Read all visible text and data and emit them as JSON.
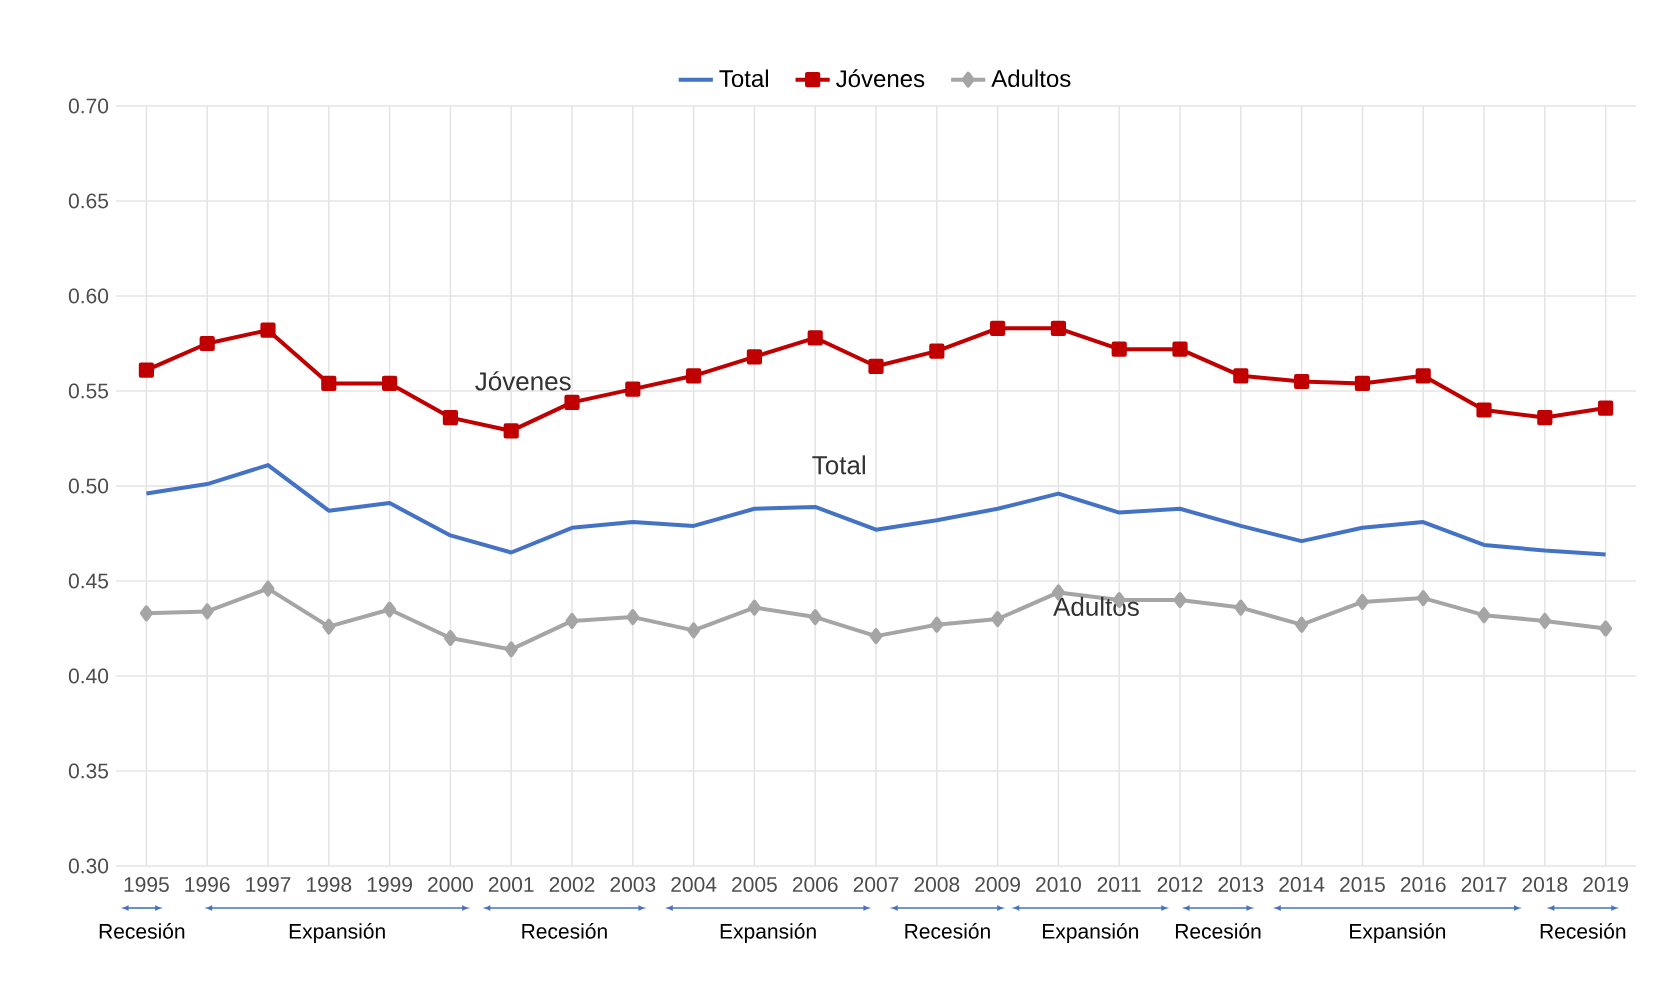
{
  "chart_data": {
    "type": "line",
    "x": [
      1995,
      1996,
      1997,
      1998,
      1999,
      2000,
      2001,
      2002,
      2003,
      2004,
      2005,
      2006,
      2007,
      2008,
      2009,
      2010,
      2011,
      2012,
      2013,
      2014,
      2015,
      2016,
      2017,
      2018,
      2019
    ],
    "series": [
      {
        "name": "Total",
        "color": "#4472c4",
        "marker": "none",
        "values": [
          0.496,
          0.501,
          0.511,
          0.487,
          0.491,
          0.474,
          0.465,
          0.478,
          0.481,
          0.479,
          0.488,
          0.489,
          0.477,
          0.482,
          0.488,
          0.496,
          0.486,
          0.488,
          0.479,
          0.471,
          0.478,
          0.481,
          0.469,
          0.466,
          0.464
        ]
      },
      {
        "name": "Jóvenes",
        "color": "#c00000",
        "marker": "square",
        "values": [
          0.561,
          0.575,
          0.582,
          0.554,
          0.554,
          0.536,
          0.529,
          0.544,
          0.551,
          0.558,
          0.568,
          0.578,
          0.563,
          0.571,
          0.583,
          0.583,
          0.572,
          0.572,
          0.558,
          0.555,
          0.554,
          0.558,
          0.54,
          0.536,
          0.541
        ]
      },
      {
        "name": "Adultos",
        "color": "#a5a5a5",
        "marker": "diamond",
        "values": [
          0.433,
          0.434,
          0.446,
          0.426,
          0.435,
          0.42,
          0.414,
          0.429,
          0.431,
          0.424,
          0.436,
          0.431,
          0.421,
          0.427,
          0.43,
          0.444,
          0.44,
          0.44,
          0.436,
          0.427,
          0.439,
          0.441,
          0.432,
          0.429,
          0.425
        ]
      }
    ],
    "xlim": [
      1994.5,
      2019.5
    ],
    "xticks": [
      1995,
      1996,
      1997,
      1998,
      1999,
      2000,
      2001,
      2002,
      2003,
      2004,
      2005,
      2006,
      2007,
      2008,
      2009,
      2010,
      2011,
      2012,
      2013,
      2014,
      2015,
      2016,
      2017,
      2018,
      2019
    ],
    "ylim": [
      0.3,
      0.7
    ],
    "yticks": [
      {
        "value": 0.3,
        "label": "0.30"
      },
      {
        "value": 0.35,
        "label": "0.35"
      },
      {
        "value": 0.4,
        "label": "0.40"
      },
      {
        "value": 0.45,
        "label": "0.45"
      },
      {
        "value": 0.5,
        "label": "0.50"
      },
      {
        "value": 0.55,
        "label": "0.55"
      },
      {
        "value": 0.6,
        "label": "0.60"
      },
      {
        "value": 0.65,
        "label": "0.65"
      },
      {
        "value": 0.7,
        "label": "0.70"
      }
    ],
    "grid": true,
    "legend": "top",
    "line_style": "solid",
    "annotations": [
      "Recesión",
      "Expansión",
      "Recesión",
      "Expansión",
      "Recesión",
      "Expansión",
      "Recesión",
      "Expansión",
      "Recesión"
    ]
  }
}
